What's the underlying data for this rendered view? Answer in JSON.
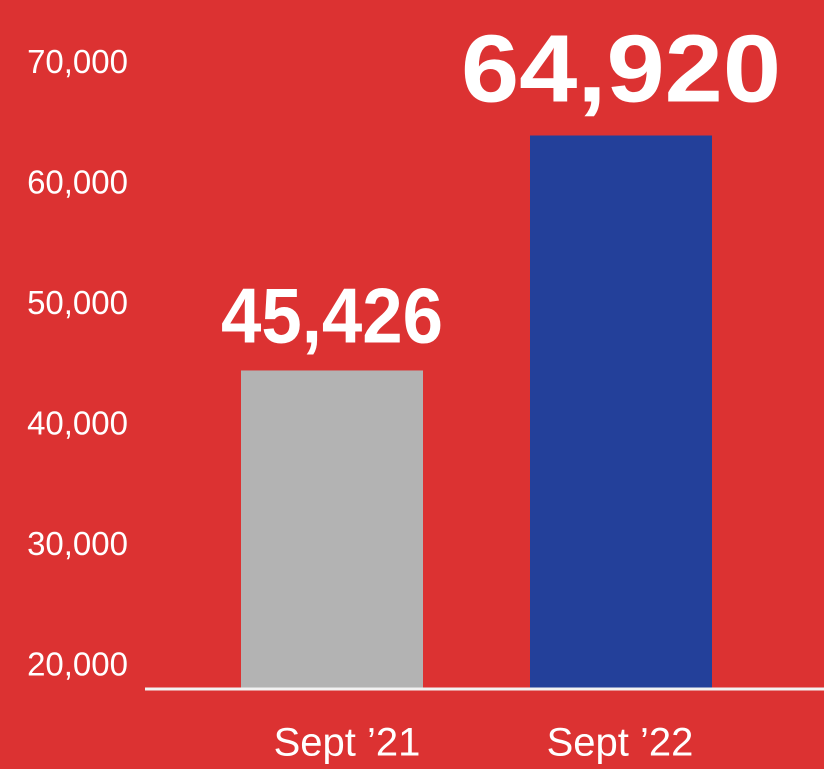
{
  "chart_data": {
    "type": "bar",
    "categories": [
      "Sept ’21",
      "Sept ’22"
    ],
    "values": [
      45426,
      64920
    ],
    "value_labels": [
      "45,426",
      "64,920"
    ],
    "colors": [
      "#b3b3b3",
      "#23409a"
    ],
    "ylim": [
      19000,
      75000
    ],
    "yticks": [
      {
        "value": 20000,
        "label": "20,000"
      },
      {
        "value": 30000,
        "label": "30,000"
      },
      {
        "value": 40000,
        "label": "40,000"
      },
      {
        "value": 50000,
        "label": "50,000"
      },
      {
        "value": 60000,
        "label": "60,000"
      },
      {
        "value": 70000,
        "label": "70,000"
      }
    ],
    "grid": false
  }
}
